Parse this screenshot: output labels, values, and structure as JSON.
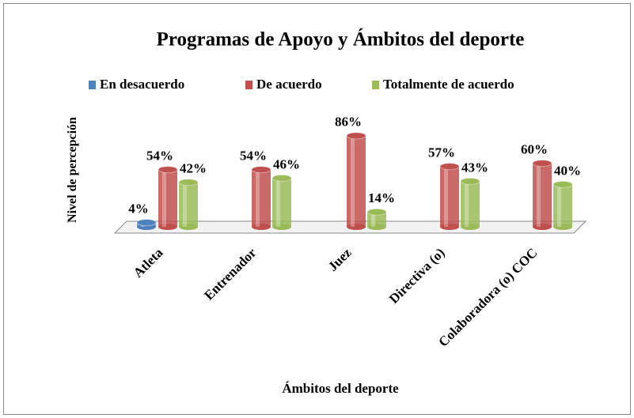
{
  "chart_data": {
    "type": "bar3d",
    "title": "Programas de Apoyo y Ámbitos del deporte",
    "y_axis_label": "Nivel de percepción",
    "x_axis_label": "Ámbitos del deporte",
    "categories": [
      "Atleta",
      "Entrenador",
      "Juez",
      "Directiva (o)",
      "Colaboradora (o) COC"
    ],
    "legend": "top",
    "series": [
      {
        "name": "En desacuerdo",
        "color": "#4f81bd",
        "values": [
          4,
          null,
          null,
          null,
          null
        ],
        "value_labels": [
          "4%",
          null,
          null,
          null,
          null
        ]
      },
      {
        "name": "De acuerdo",
        "color": "#c0504d",
        "values": [
          54,
          54,
          86,
          57,
          60
        ],
        "value_labels": [
          "54%",
          "54%",
          "86%",
          "57%",
          "60%"
        ]
      },
      {
        "name": "Totalmente de acuerdo",
        "color": "#9bbb59",
        "values": [
          42,
          46,
          14,
          43,
          40
        ],
        "value_labels": [
          "42%",
          "46%",
          "14%",
          "43%",
          "40%"
        ]
      }
    ]
  }
}
